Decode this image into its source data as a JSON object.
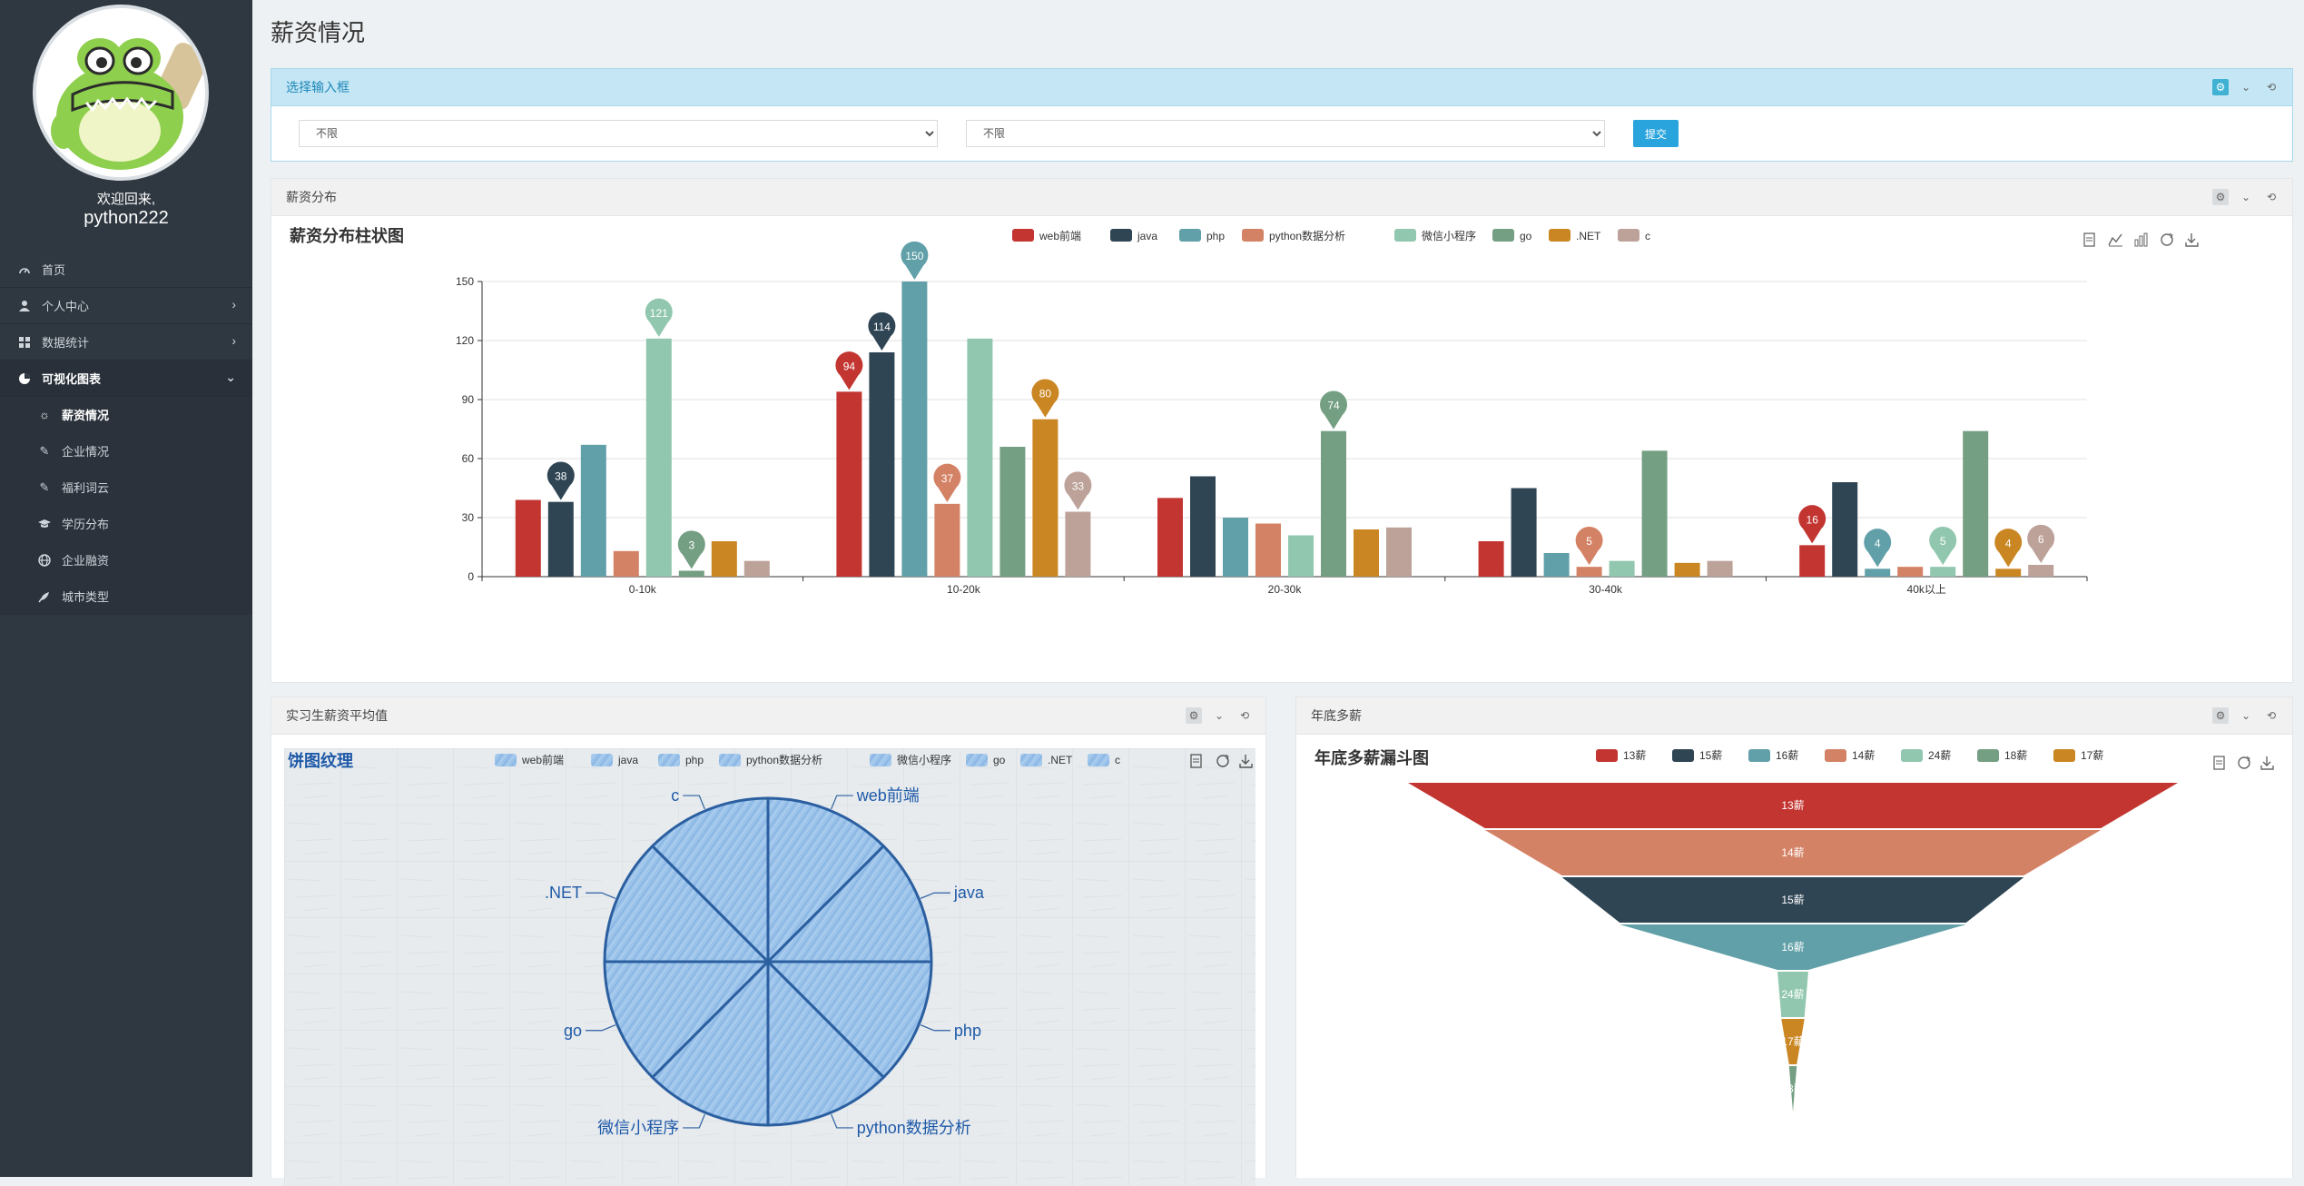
{
  "sidebar": {
    "welcome": "欢迎回来,",
    "username": "python222",
    "menu": [
      {
        "label": "首页"
      },
      {
        "label": "个人中心"
      },
      {
        "label": "数据统计"
      },
      {
        "label": "可视化图表"
      }
    ],
    "submenu": [
      {
        "label": "薪资情况"
      },
      {
        "label": "企业情况"
      },
      {
        "label": "福利词云"
      },
      {
        "label": "学历分布"
      },
      {
        "label": "企业融资"
      },
      {
        "label": "城市类型"
      }
    ]
  },
  "page": {
    "title": "薪资情况"
  },
  "filter_panel": {
    "title": "选择输入框",
    "select1": "不限",
    "select2": "不限",
    "submit": "提交"
  },
  "bar_panel": {
    "title": "薪资分布"
  },
  "pie_panel": {
    "title": "实习生薪资平均值"
  },
  "funnel_panel": {
    "title": "年底多薪"
  },
  "colors": [
    "#c23531",
    "#2f4554",
    "#61a0a8",
    "#d48265",
    "#91c7ae",
    "#749f83",
    "#ca8622",
    "#bda29a"
  ],
  "chart_data": [
    {
      "type": "bar",
      "title": "薪资分布柱状图",
      "categories": [
        "0-10k",
        "10-20k",
        "20-30k",
        "30-40k",
        "40k以上"
      ],
      "ylim": [
        0,
        150
      ],
      "yticks": [
        "0",
        "30",
        "60",
        "90",
        "120",
        "150"
      ],
      "series": [
        {
          "name": "web前端",
          "values": [
            39,
            94,
            40,
            18,
            16
          ],
          "pin": [
            null,
            94,
            null,
            null,
            16
          ]
        },
        {
          "name": "java",
          "values": [
            38,
            114,
            51,
            45,
            48
          ],
          "pin": [
            38,
            114,
            null,
            null,
            null
          ]
        },
        {
          "name": "php",
          "values": [
            67,
            150,
            30,
            12,
            4
          ],
          "pin": [
            null,
            150,
            null,
            null,
            4
          ]
        },
        {
          "name": "python数据分析",
          "values": [
            13,
            37,
            27,
            5,
            5
          ],
          "pin": [
            null,
            37,
            null,
            5,
            null
          ]
        },
        {
          "name": "微信小程序",
          "values": [
            121,
            121,
            21,
            8,
            5
          ],
          "pin": [
            121,
            null,
            null,
            null,
            5
          ]
        },
        {
          "name": "go",
          "values": [
            3,
            66,
            74,
            64,
            74
          ],
          "pin": [
            3,
            null,
            74,
            null,
            null
          ]
        },
        {
          "name": ".NET",
          "values": [
            18,
            80,
            24,
            7,
            4
          ],
          "pin": [
            null,
            80,
            null,
            null,
            4
          ]
        },
        {
          "name": "c",
          "values": [
            8,
            33,
            25,
            8,
            6
          ],
          "pin": [
            null,
            33,
            null,
            null,
            6
          ]
        }
      ]
    },
    {
      "type": "pie",
      "title": "饼图纹理",
      "labels": [
        "web前端",
        "java",
        "php",
        "python数据分析",
        "微信小程序",
        "go",
        ".NET",
        "c"
      ],
      "values": [
        1,
        1,
        1,
        1,
        1,
        1,
        1,
        1
      ]
    },
    {
      "type": "funnel",
      "title": "年底多薪漏斗图",
      "legend": [
        "13薪",
        "15薪",
        "16薪",
        "14薪",
        "24薪",
        "18薪",
        "17薪"
      ],
      "stages": [
        {
          "name": "13薪",
          "value": 100,
          "color": "#c23531"
        },
        {
          "name": "14薪",
          "value": 80,
          "color": "#d48265"
        },
        {
          "name": "15薪",
          "value": 60,
          "color": "#2f4554"
        },
        {
          "name": "16薪",
          "value": 45,
          "color": "#61a0a8"
        },
        {
          "name": "24薪",
          "value": 4,
          "color": "#91c7ae"
        },
        {
          "name": "17薪",
          "value": 3,
          "color": "#ca8622"
        },
        {
          "name": "18薪",
          "value": 1,
          "color": "#749f83"
        }
      ]
    }
  ]
}
